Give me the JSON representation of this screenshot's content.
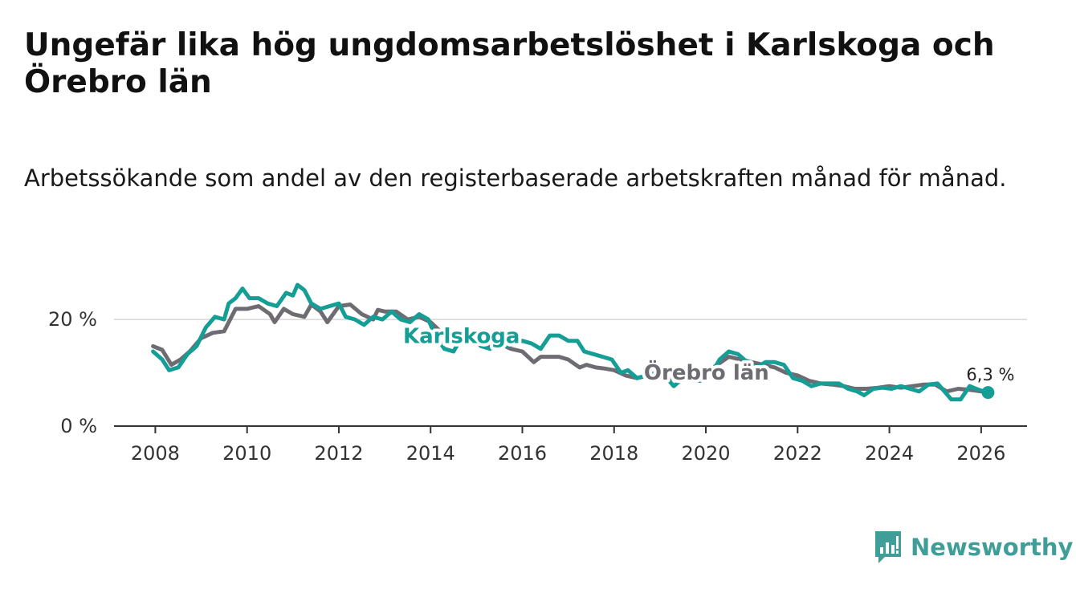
{
  "chart_data": {
    "type": "line",
    "title": "Ungefär lika hög ungdomsarbetslöshet i Karlskoga och Örebro län",
    "subtitle": "Arbetssökande som andel av den registerbaserade arbetskraften månad för månad.",
    "xlabel": "",
    "ylabel": "",
    "xlim": [
      2007.1,
      2027.0
    ],
    "ylim": [
      0,
      28
    ],
    "x_ticks": [
      2008,
      2010,
      2012,
      2014,
      2016,
      2018,
      2020,
      2022,
      2024,
      2026
    ],
    "x_tick_labels": [
      "2008",
      "2010",
      "2012",
      "2014",
      "2016",
      "2018",
      "2020",
      "2022",
      "2024",
      "2026"
    ],
    "y_ticks": [
      0,
      20
    ],
    "y_tick_labels": [
      "0 %",
      "20 %"
    ],
    "grid": "horizontal",
    "series": [
      {
        "name": "Örebro län",
        "label": "Örebro län",
        "color": "#6e6c72",
        "points": [
          [
            2007.95,
            15.0
          ],
          [
            2008.15,
            14.3
          ],
          [
            2008.35,
            11.5
          ],
          [
            2008.55,
            12.5
          ],
          [
            2008.75,
            14.0
          ],
          [
            2009.0,
            16.5
          ],
          [
            2009.25,
            17.5
          ],
          [
            2009.5,
            17.8
          ],
          [
            2009.75,
            22.0
          ],
          [
            2010.0,
            22.0
          ],
          [
            2010.25,
            22.5
          ],
          [
            2010.5,
            21.0
          ],
          [
            2010.6,
            19.5
          ],
          [
            2010.8,
            22.0
          ],
          [
            2011.0,
            21.0
          ],
          [
            2011.25,
            20.5
          ],
          [
            2011.4,
            22.8
          ],
          [
            2011.6,
            21.5
          ],
          [
            2011.75,
            19.5
          ],
          [
            2012.0,
            22.5
          ],
          [
            2012.25,
            22.8
          ],
          [
            2012.5,
            21.0
          ],
          [
            2012.75,
            20.0
          ],
          [
            2012.85,
            21.8
          ],
          [
            2013.0,
            21.5
          ],
          [
            2013.25,
            21.5
          ],
          [
            2013.5,
            20.0
          ],
          [
            2013.75,
            20.5
          ],
          [
            2014.0,
            19.5
          ],
          [
            2014.25,
            17.5
          ],
          [
            2014.5,
            17.0
          ],
          [
            2014.75,
            16.5
          ],
          [
            2015.0,
            15.5
          ],
          [
            2015.25,
            15.0
          ],
          [
            2015.5,
            15.5
          ],
          [
            2015.75,
            14.5
          ],
          [
            2016.0,
            14.0
          ],
          [
            2016.25,
            12.0
          ],
          [
            2016.4,
            13.0
          ],
          [
            2016.6,
            13.0
          ],
          [
            2016.8,
            13.0
          ],
          [
            2017.0,
            12.5
          ],
          [
            2017.25,
            11.0
          ],
          [
            2017.4,
            11.5
          ],
          [
            2017.6,
            11.0
          ],
          [
            2017.8,
            10.8
          ],
          [
            2018.0,
            10.5
          ],
          [
            2018.25,
            9.5
          ],
          [
            2018.5,
            9.0
          ],
          [
            2018.75,
            9.5
          ],
          [
            2019.0,
            9.2
          ],
          [
            2019.25,
            9.0
          ],
          [
            2019.5,
            9.0
          ],
          [
            2019.75,
            9.2
          ],
          [
            2020.0,
            10.0
          ],
          [
            2020.25,
            11.5
          ],
          [
            2020.5,
            13.0
          ],
          [
            2020.75,
            12.5
          ],
          [
            2021.0,
            12.0
          ],
          [
            2021.25,
            11.5
          ],
          [
            2021.5,
            11.0
          ],
          [
            2021.75,
            10.0
          ],
          [
            2022.0,
            9.5
          ],
          [
            2022.25,
            8.5
          ],
          [
            2022.5,
            8.0
          ],
          [
            2022.75,
            7.8
          ],
          [
            2023.0,
            7.5
          ],
          [
            2023.25,
            7.0
          ],
          [
            2023.5,
            7.0
          ],
          [
            2023.75,
            7.2
          ],
          [
            2024.0,
            7.5
          ],
          [
            2024.25,
            7.2
          ],
          [
            2024.5,
            7.5
          ],
          [
            2024.75,
            7.8
          ],
          [
            2025.0,
            7.8
          ],
          [
            2025.25,
            6.5
          ],
          [
            2025.5,
            7.0
          ],
          [
            2025.75,
            6.8
          ],
          [
            2026.0,
            6.5
          ],
          [
            2026.15,
            6.3
          ]
        ]
      },
      {
        "name": "Karlskoga",
        "label": "Karlskoga",
        "color": "#159e96",
        "end_label": "6,3 %",
        "points": [
          [
            2007.95,
            14.0
          ],
          [
            2008.15,
            12.5
          ],
          [
            2008.3,
            10.5
          ],
          [
            2008.5,
            11.0
          ],
          [
            2008.7,
            13.5
          ],
          [
            2008.9,
            15.0
          ],
          [
            2009.1,
            18.5
          ],
          [
            2009.3,
            20.5
          ],
          [
            2009.5,
            20.0
          ],
          [
            2009.6,
            23.0
          ],
          [
            2009.75,
            24.0
          ],
          [
            2009.9,
            25.8
          ],
          [
            2010.05,
            24.0
          ],
          [
            2010.25,
            24.0
          ],
          [
            2010.45,
            23.0
          ],
          [
            2010.65,
            22.5
          ],
          [
            2010.85,
            25.0
          ],
          [
            2011.0,
            24.5
          ],
          [
            2011.1,
            26.5
          ],
          [
            2011.25,
            25.5
          ],
          [
            2011.4,
            23.0
          ],
          [
            2011.6,
            22.0
          ],
          [
            2011.8,
            22.5
          ],
          [
            2012.0,
            23.0
          ],
          [
            2012.15,
            20.5
          ],
          [
            2012.35,
            20.0
          ],
          [
            2012.55,
            19.0
          ],
          [
            2012.75,
            20.5
          ],
          [
            2012.95,
            20.0
          ],
          [
            2013.15,
            21.5
          ],
          [
            2013.35,
            20.0
          ],
          [
            2013.55,
            19.5
          ],
          [
            2013.75,
            21.0
          ],
          [
            2013.95,
            20.0
          ],
          [
            2014.1,
            17.0
          ],
          [
            2014.3,
            14.5
          ],
          [
            2014.5,
            14.0
          ],
          [
            2014.7,
            17.0
          ],
          [
            2014.9,
            16.5
          ],
          [
            2015.1,
            15.0
          ],
          [
            2015.3,
            14.5
          ],
          [
            2015.45,
            16.5
          ],
          [
            2015.65,
            15.0
          ],
          [
            2015.85,
            15.5
          ],
          [
            2016.0,
            16.0
          ],
          [
            2016.2,
            15.5
          ],
          [
            2016.4,
            14.5
          ],
          [
            2016.6,
            17.0
          ],
          [
            2016.8,
            17.0
          ],
          [
            2017.0,
            16.0
          ],
          [
            2017.2,
            16.0
          ],
          [
            2017.35,
            14.0
          ],
          [
            2017.55,
            13.5
          ],
          [
            2017.75,
            13.0
          ],
          [
            2017.95,
            12.5
          ],
          [
            2018.15,
            10.0
          ],
          [
            2018.3,
            10.5
          ],
          [
            2018.5,
            9.0
          ],
          [
            2018.7,
            9.5
          ],
          [
            2018.9,
            10.0
          ],
          [
            2019.1,
            9.5
          ],
          [
            2019.3,
            7.5
          ],
          [
            2019.5,
            9.0
          ],
          [
            2019.7,
            8.5
          ],
          [
            2019.9,
            8.5
          ],
          [
            2020.1,
            9.5
          ],
          [
            2020.3,
            12.5
          ],
          [
            2020.5,
            14.0
          ],
          [
            2020.7,
            13.5
          ],
          [
            2020.9,
            12.0
          ],
          [
            2021.1,
            11.0
          ],
          [
            2021.3,
            12.0
          ],
          [
            2021.5,
            12.0
          ],
          [
            2021.7,
            11.5
          ],
          [
            2021.9,
            9.0
          ],
          [
            2022.1,
            8.5
          ],
          [
            2022.3,
            7.5
          ],
          [
            2022.5,
            8.0
          ],
          [
            2022.7,
            8.0
          ],
          [
            2022.9,
            8.0
          ],
          [
            2023.1,
            7.0
          ],
          [
            2023.3,
            6.5
          ],
          [
            2023.45,
            5.8
          ],
          [
            2023.65,
            7.0
          ],
          [
            2023.85,
            7.2
          ],
          [
            2024.05,
            7.0
          ],
          [
            2024.25,
            7.5
          ],
          [
            2024.45,
            7.0
          ],
          [
            2024.65,
            6.5
          ],
          [
            2024.85,
            7.8
          ],
          [
            2025.05,
            8.0
          ],
          [
            2025.2,
            6.5
          ],
          [
            2025.35,
            5.0
          ],
          [
            2025.55,
            5.0
          ],
          [
            2025.75,
            7.5
          ],
          [
            2025.95,
            6.8
          ],
          [
            2026.15,
            6.3
          ]
        ]
      }
    ],
    "annotations": [
      "6,3 %"
    ]
  },
  "brand": {
    "name": "Newsworthy",
    "color": "#3f9f98"
  }
}
